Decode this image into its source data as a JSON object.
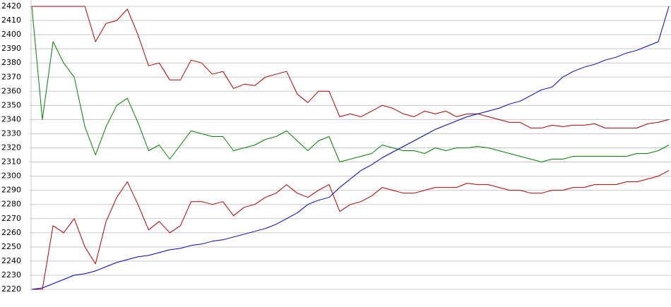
{
  "chart_data": {
    "type": "line",
    "ylim": [
      2220,
      2420
    ],
    "yticks": [
      2220,
      2230,
      2240,
      2250,
      2260,
      2270,
      2280,
      2290,
      2300,
      2310,
      2320,
      2330,
      2340,
      2350,
      2360,
      2370,
      2380,
      2390,
      2400,
      2410,
      2420
    ],
    "grid": true,
    "series": [
      {
        "color": "#b00000",
        "values": [
          2420,
          2420,
          2420,
          2420,
          2420,
          2420,
          2395,
          2408,
          2410,
          2418,
          2400,
          2378,
          2380,
          2368,
          2368,
          2382,
          2380,
          2372,
          2374,
          2362,
          2365,
          2364,
          2370,
          2372,
          2374,
          2358,
          2352,
          2360,
          2360,
          2342,
          2344,
          2342,
          2346,
          2350,
          2348,
          2344,
          2342,
          2346,
          2344,
          2346,
          2342,
          2344,
          2344,
          2342,
          2340,
          2338,
          2338,
          2334,
          2334,
          2336,
          2335,
          2336,
          2336,
          2337,
          2334,
          2334,
          2334,
          2334,
          2337,
          2338,
          2340
        ]
      },
      {
        "color": "#008000",
        "values": [
          2420,
          2340,
          2395,
          2380,
          2370,
          2335,
          2315,
          2335,
          2350,
          2355,
          2338,
          2318,
          2322,
          2312,
          2322,
          2332,
          2330,
          2328,
          2328,
          2318,
          2320,
          2322,
          2326,
          2328,
          2332,
          2325,
          2318,
          2325,
          2328,
          2310,
          2312,
          2314,
          2316,
          2322,
          2320,
          2318,
          2318,
          2316,
          2320,
          2318,
          2320,
          2320,
          2321,
          2320,
          2318,
          2316,
          2314,
          2312,
          2310,
          2312,
          2312,
          2314,
          2314,
          2314,
          2314,
          2314,
          2314,
          2316,
          2316,
          2318,
          2322
        ]
      },
      {
        "color": "#b00000",
        "values": [
          2220,
          2220,
          2265,
          2260,
          2270,
          2250,
          2238,
          2268,
          2285,
          2296,
          2280,
          2262,
          2268,
          2260,
          2265,
          2282,
          2282,
          2280,
          2282,
          2272,
          2278,
          2280,
          2285,
          2288,
          2294,
          2288,
          2285,
          2290,
          2294,
          2275,
          2280,
          2282,
          2286,
          2292,
          2290,
          2288,
          2288,
          2290,
          2292,
          2292,
          2292,
          2295,
          2294,
          2294,
          2292,
          2290,
          2290,
          2288,
          2288,
          2290,
          2290,
          2292,
          2292,
          2294,
          2294,
          2294,
          2296,
          2296,
          2298,
          2300,
          2304
        ]
      },
      {
        "color": "#0000c0",
        "values": [
          2220,
          2221,
          2224,
          2227,
          2230,
          2231,
          2233,
          2236,
          2239,
          2241,
          2243,
          2244,
          2246,
          2248,
          2249,
          2251,
          2252,
          2254,
          2255,
          2257,
          2259,
          2261,
          2263,
          2266,
          2270,
          2274,
          2280,
          2283,
          2285,
          2292,
          2298,
          2304,
          2308,
          2313,
          2317,
          2321,
          2325,
          2329,
          2333,
          2336,
          2339,
          2342,
          2344,
          2346,
          2348,
          2351,
          2353,
          2357,
          2361,
          2363,
          2370,
          2374,
          2377,
          2379,
          2382,
          2384,
          2387,
          2389,
          2392,
          2395,
          2420
        ]
      }
    ]
  }
}
